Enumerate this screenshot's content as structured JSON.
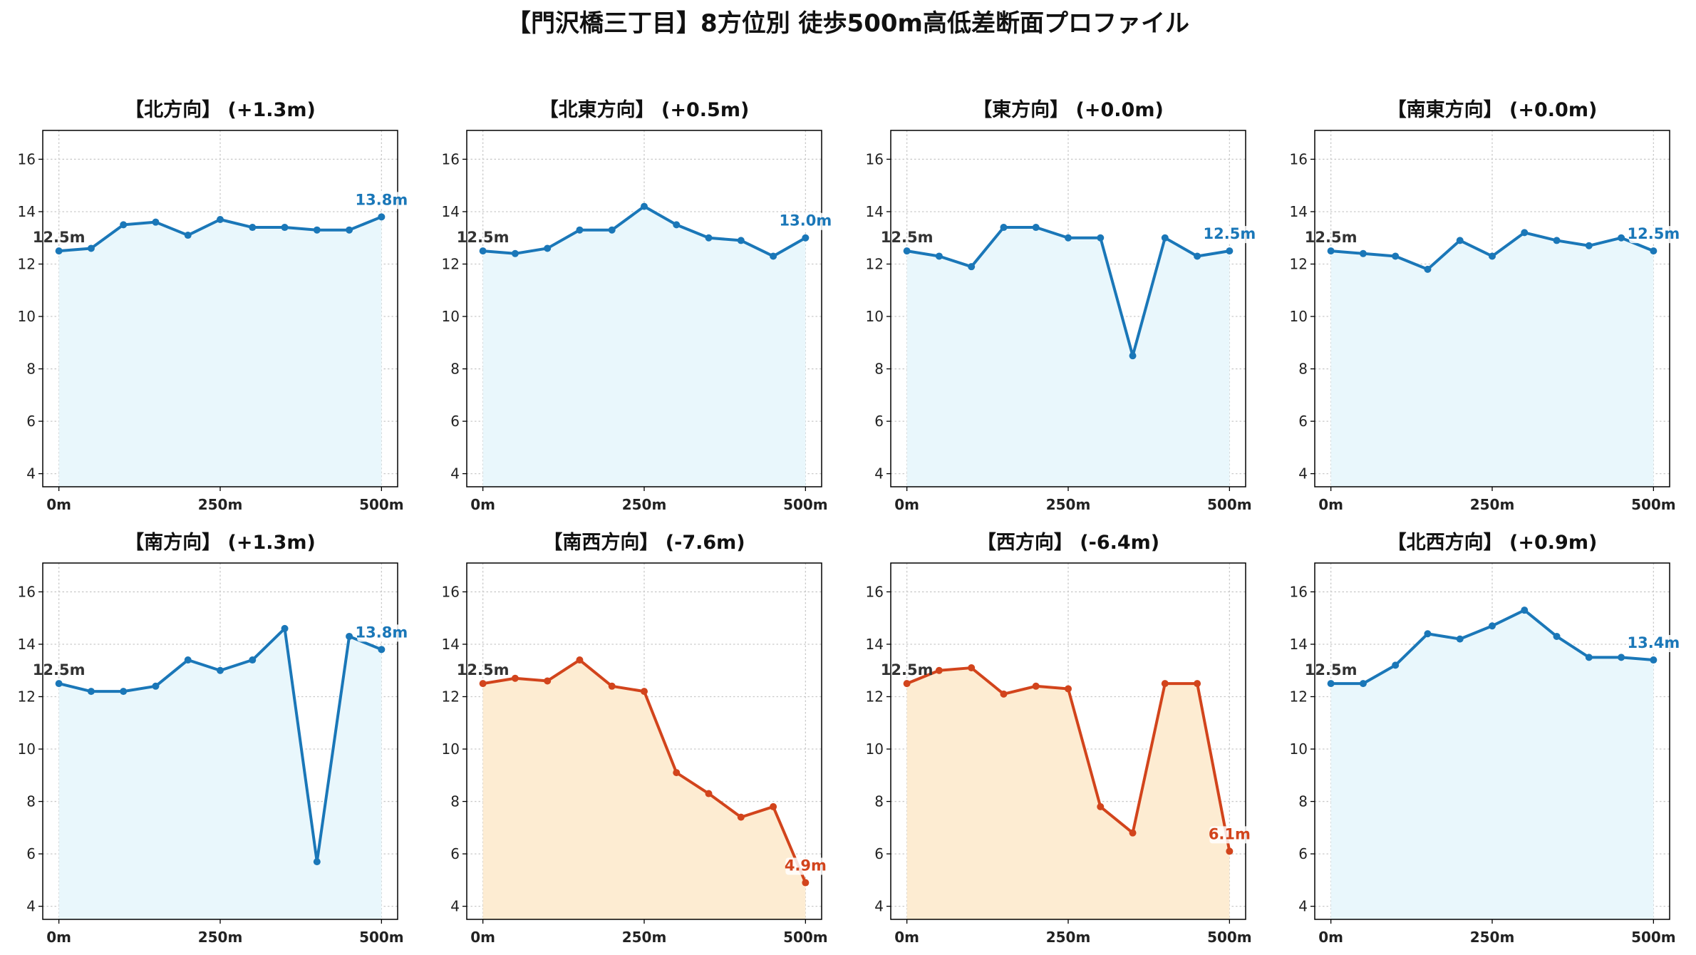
{
  "figure": {
    "title": "【門沢橋三丁目】8方位別 徒歩500m高低差断面プロファイル"
  },
  "colors": {
    "up": "#1a77b8",
    "up_fill": "#e9f7fc",
    "down": "#d2441c",
    "down_fill": "#fdecd2",
    "grid": "#c9c9c9"
  },
  "chart_data": [
    {
      "type": "area",
      "title": "【北方向】 (+1.3m)",
      "trend": "up",
      "x": [
        0,
        50,
        100,
        150,
        200,
        250,
        300,
        350,
        400,
        450,
        500
      ],
      "y": [
        12.5,
        12.6,
        13.5,
        13.6,
        13.1,
        13.7,
        13.4,
        13.4,
        13.3,
        13.3,
        13.8
      ],
      "xticks": [
        "0m",
        "250m",
        "500m"
      ],
      "yticks": [
        "4",
        "6",
        "8",
        "10",
        "12",
        "14",
        "16"
      ],
      "ylim": [
        3.5,
        17.1
      ],
      "xlim": [
        -25,
        525
      ],
      "start_label": "12.5m",
      "end_label": "13.8m",
      "grid": true
    },
    {
      "type": "area",
      "title": "【北東方向】 (+0.5m)",
      "trend": "up",
      "x": [
        0,
        50,
        100,
        150,
        200,
        250,
        300,
        350,
        400,
        450,
        500
      ],
      "y": [
        12.5,
        12.4,
        12.6,
        13.3,
        13.3,
        14.2,
        13.5,
        13.0,
        12.9,
        12.3,
        13.0
      ],
      "xticks": [
        "0m",
        "250m",
        "500m"
      ],
      "yticks": [
        "4",
        "6",
        "8",
        "10",
        "12",
        "14",
        "16"
      ],
      "ylim": [
        3.5,
        17.1
      ],
      "xlim": [
        -25,
        525
      ],
      "start_label": "12.5m",
      "end_label": "13.0m",
      "grid": true
    },
    {
      "type": "area",
      "title": "【東方向】 (+0.0m)",
      "trend": "up",
      "x": [
        0,
        50,
        100,
        150,
        200,
        250,
        300,
        350,
        400,
        450,
        500
      ],
      "y": [
        12.5,
        12.3,
        11.9,
        13.4,
        13.4,
        13.0,
        13.0,
        8.5,
        13.0,
        12.3,
        12.5
      ],
      "xticks": [
        "0m",
        "250m",
        "500m"
      ],
      "yticks": [
        "4",
        "6",
        "8",
        "10",
        "12",
        "14",
        "16"
      ],
      "ylim": [
        3.5,
        17.1
      ],
      "xlim": [
        -25,
        525
      ],
      "start_label": "12.5m",
      "end_label": "12.5m",
      "grid": true
    },
    {
      "type": "area",
      "title": "【南東方向】 (+0.0m)",
      "trend": "up",
      "x": [
        0,
        50,
        100,
        150,
        200,
        250,
        300,
        350,
        400,
        450,
        500
      ],
      "y": [
        12.5,
        12.4,
        12.3,
        11.8,
        12.9,
        12.3,
        13.2,
        12.9,
        12.7,
        13.0,
        12.5
      ],
      "xticks": [
        "0m",
        "250m",
        "500m"
      ],
      "yticks": [
        "4",
        "6",
        "8",
        "10",
        "12",
        "14",
        "16"
      ],
      "ylim": [
        3.5,
        17.1
      ],
      "xlim": [
        -25,
        525
      ],
      "start_label": "12.5m",
      "end_label": "12.5m",
      "grid": true
    },
    {
      "type": "area",
      "title": "【南方向】 (+1.3m)",
      "trend": "up",
      "x": [
        0,
        50,
        100,
        150,
        200,
        250,
        300,
        350,
        400,
        450,
        500
      ],
      "y": [
        12.5,
        12.2,
        12.2,
        12.4,
        13.4,
        13.0,
        13.4,
        14.6,
        5.7,
        14.3,
        13.8
      ],
      "xticks": [
        "0m",
        "250m",
        "500m"
      ],
      "yticks": [
        "4",
        "6",
        "8",
        "10",
        "12",
        "14",
        "16"
      ],
      "ylim": [
        3.5,
        17.1
      ],
      "xlim": [
        -25,
        525
      ],
      "start_label": "12.5m",
      "end_label": "13.8m",
      "grid": true
    },
    {
      "type": "area",
      "title": "【南西方向】 (-7.6m)",
      "trend": "down",
      "x": [
        0,
        50,
        100,
        150,
        200,
        250,
        300,
        350,
        400,
        450,
        500
      ],
      "y": [
        12.5,
        12.7,
        12.6,
        13.4,
        12.4,
        12.2,
        9.1,
        8.3,
        7.4,
        7.8,
        4.9
      ],
      "xticks": [
        "0m",
        "250m",
        "500m"
      ],
      "yticks": [
        "4",
        "6",
        "8",
        "10",
        "12",
        "14",
        "16"
      ],
      "ylim": [
        3.5,
        17.1
      ],
      "xlim": [
        -25,
        525
      ],
      "start_label": "12.5m",
      "end_label": "4.9m",
      "grid": true
    },
    {
      "type": "area",
      "title": "【西方向】 (-6.4m)",
      "trend": "down",
      "x": [
        0,
        50,
        100,
        150,
        200,
        250,
        300,
        350,
        400,
        450,
        500
      ],
      "y": [
        12.5,
        13.0,
        13.1,
        12.1,
        12.4,
        12.3,
        7.8,
        6.8,
        12.5,
        12.5,
        6.1
      ],
      "xticks": [
        "0m",
        "250m",
        "500m"
      ],
      "yticks": [
        "4",
        "6",
        "8",
        "10",
        "12",
        "14",
        "16"
      ],
      "ylim": [
        3.5,
        17.1
      ],
      "xlim": [
        -25,
        525
      ],
      "start_label": "12.5m",
      "end_label": "6.1m",
      "grid": true
    },
    {
      "type": "area",
      "title": "【北西方向】 (+0.9m)",
      "trend": "up",
      "x": [
        0,
        50,
        100,
        150,
        200,
        250,
        300,
        350,
        400,
        450,
        500
      ],
      "y": [
        12.5,
        12.5,
        13.2,
        14.4,
        14.2,
        14.7,
        15.3,
        14.3,
        13.5,
        13.5,
        13.4
      ],
      "xticks": [
        "0m",
        "250m",
        "500m"
      ],
      "yticks": [
        "4",
        "6",
        "8",
        "10",
        "12",
        "14",
        "16"
      ],
      "ylim": [
        3.5,
        17.1
      ],
      "xlim": [
        -25,
        525
      ],
      "start_label": "12.5m",
      "end_label": "13.4m",
      "grid": true
    }
  ]
}
